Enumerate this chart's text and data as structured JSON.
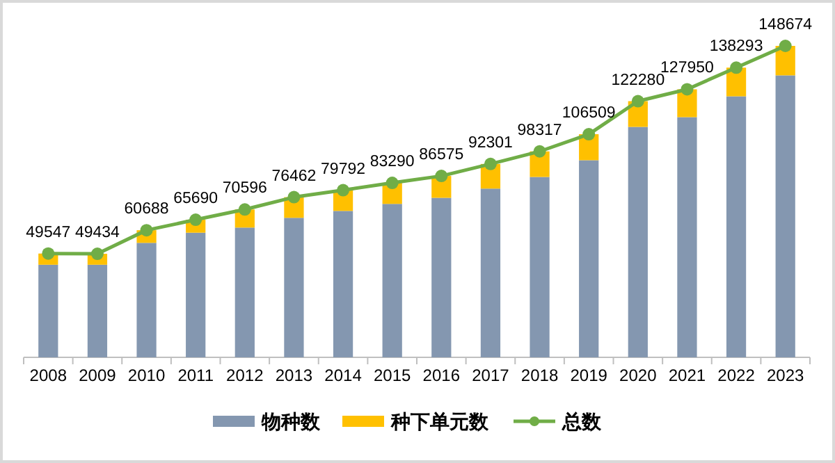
{
  "chart_data": {
    "type": "bar",
    "stacked": true,
    "categories": [
      "2008",
      "2009",
      "2010",
      "2011",
      "2012",
      "2013",
      "2014",
      "2015",
      "2016",
      "2017",
      "2018",
      "2019",
      "2020",
      "2021",
      "2022",
      "2023"
    ],
    "tick_labels": "x",
    "legend": "bottom",
    "marker": "circle",
    "series": [
      {
        "name": "物种数",
        "color": "#8497b0",
        "values": [
          44200,
          44200,
          54650,
          59500,
          61950,
          66600,
          69900,
          73250,
          76150,
          80550,
          86100,
          94100,
          110000,
          114650,
          124600,
          134600
        ]
      },
      {
        "name": "种下单元数",
        "color": "#ffc000",
        "values": [
          5347,
          5234,
          6038,
          6190,
          8646,
          9862,
          9892,
          10040,
          10425,
          11751,
          12217,
          12409,
          12280,
          13300,
          13693,
          14074
        ]
      },
      {
        "name": "总数",
        "type": "line",
        "color": "#70ad47",
        "values": [
          49547,
          49434,
          60688,
          65690,
          70596,
          76462,
          79792,
          83290,
          86575,
          92301,
          98317,
          106509,
          122280,
          127950,
          138293,
          148674
        ],
        "value_labels": [
          "49547",
          "49434",
          "60688",
          "65690",
          "70596",
          "76462",
          "79792",
          "83290",
          "86575",
          "92301",
          "98317",
          "106509",
          "122280",
          "127950",
          "138293",
          "148674"
        ]
      }
    ]
  }
}
